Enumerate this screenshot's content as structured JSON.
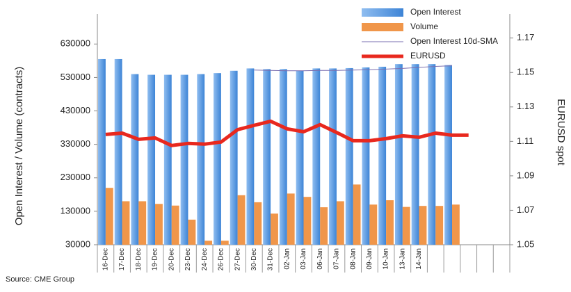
{
  "chart_data": {
    "type": "bar",
    "source": "Source: CME Group",
    "y_label": "Open Interest / Volume (contracts)",
    "y2_label": "EURUSD spot",
    "categories": [
      "16-Dec",
      "17-Dec",
      "18-Dec",
      "19-Dec",
      "20-Dec",
      "23-Dec",
      "24-Dec",
      "26-Dec",
      "27-Dec",
      "30-Dec",
      "31-Dec",
      "02-Jan",
      "03-Jan",
      "06-Jan",
      "07-Jan",
      "08-Jan",
      "09-Jan",
      "10-Jan",
      "13-Jan",
      "14-Jan",
      null,
      null,
      null,
      null,
      null
    ],
    "series": [
      {
        "name": "Open Interest",
        "type": "bar",
        "color": "#5b9be0",
        "values": [
          585000,
          585000,
          540000,
          538000,
          538000,
          538000,
          540000,
          543000,
          550000,
          557000,
          555000,
          555000,
          550000,
          557000,
          557000,
          558000,
          560000,
          562000,
          570000,
          570000,
          570000,
          567000,
          null,
          null,
          null
        ]
      },
      {
        "name": "Volume",
        "type": "bar",
        "color": "#f0964a",
        "values": [
          200000,
          160000,
          160000,
          152000,
          147000,
          105000,
          42000,
          42000,
          178000,
          157000,
          123000,
          183000,
          173000,
          142000,
          160000,
          210000,
          150000,
          163000,
          143000,
          146000,
          146000,
          150000,
          null,
          null,
          null
        ]
      },
      {
        "name": "Open Interest 10d-SMA",
        "type": "line",
        "color": "#7a6fb0",
        "width": 1,
        "values": [
          null,
          null,
          null,
          null,
          null,
          null,
          null,
          null,
          null,
          552000,
          551000,
          550000,
          550000,
          551000,
          551000,
          552000,
          553000,
          555000,
          557000,
          560000,
          563000,
          565000,
          null,
          null,
          null
        ]
      },
      {
        "name": "EURUSD",
        "type": "line",
        "axis": "y2",
        "color": "#e8281e",
        "width": 5,
        "values": [
          1.114,
          1.1148,
          1.1112,
          1.112,
          1.1076,
          1.1088,
          1.1084,
          1.1096,
          1.1168,
          1.1193,
          1.1217,
          1.1173,
          1.1156,
          1.1197,
          1.1152,
          1.1104,
          1.1104,
          1.1116,
          1.1132,
          1.1124,
          1.1148,
          1.1136,
          1.1136,
          null,
          null
        ]
      }
    ],
    "ylim": [
      30000,
      720000
    ],
    "yticks": [
      30000,
      130000,
      230000,
      330000,
      430000,
      530000,
      630000
    ],
    "y2lim": [
      1.05,
      1.184
    ],
    "y2ticks": [
      1.05,
      1.07,
      1.09,
      1.11,
      1.13,
      1.15,
      1.17
    ],
    "grid": false,
    "legend": "top-right"
  }
}
